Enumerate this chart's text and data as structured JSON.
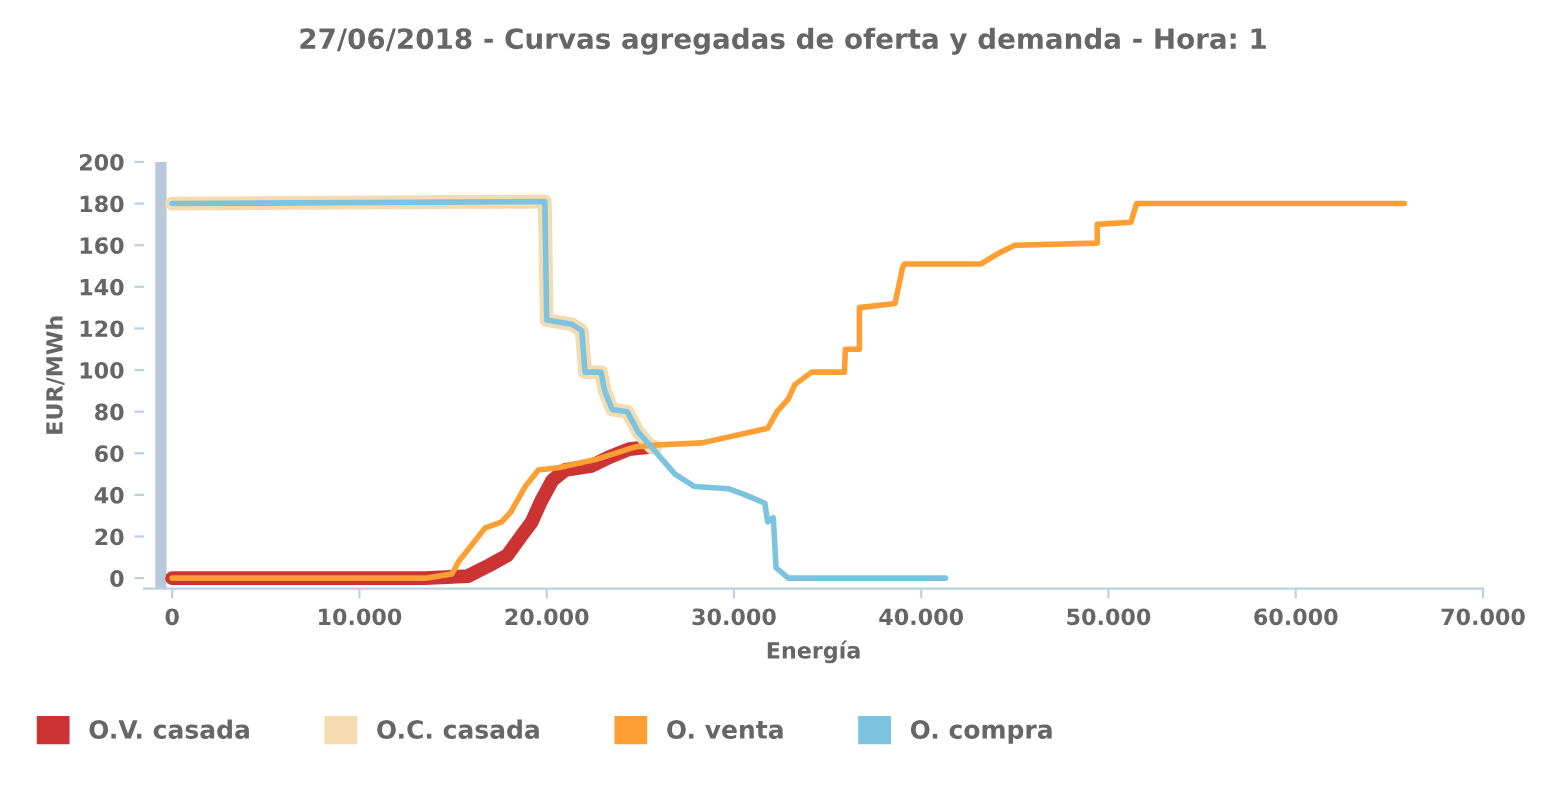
{
  "chart_data": {
    "type": "line",
    "title": "27/06/2018 - Curvas agregadas de oferta y demanda - Hora: 1",
    "xlabel": "Energía",
    "ylabel": "EUR/MWh",
    "xlim": [
      -1500,
      70000
    ],
    "ylim": [
      -5,
      200
    ],
    "xticks": [
      {
        "value": 0,
        "label": "0"
      },
      {
        "value": 10000,
        "label": "10.000"
      },
      {
        "value": 20000,
        "label": "20.000"
      },
      {
        "value": 30000,
        "label": "30.000"
      },
      {
        "value": 40000,
        "label": "40.000"
      },
      {
        "value": 50000,
        "label": "50.000"
      },
      {
        "value": 60000,
        "label": "60.000"
      },
      {
        "value": 70000,
        "label": "70.000"
      }
    ],
    "yticks": [
      0,
      20,
      40,
      60,
      80,
      100,
      120,
      140,
      160,
      180,
      200
    ],
    "grid": false,
    "legend": "bottom left",
    "marker": "none",
    "line_style": "solid",
    "bands": [
      {
        "axis": "x",
        "from": -900,
        "to": -300,
        "color": "#b8c9d9"
      }
    ],
    "series": [
      {
        "name": "O.V. casada",
        "color": "#cc3333",
        "x": [
          0,
          13500,
          15800,
          16900,
          17900,
          18700,
          19200,
          19700,
          20300,
          21000,
          22400,
          23300,
          24400,
          25400
        ],
        "values": [
          0,
          0,
          1,
          6,
          11,
          21,
          27,
          37,
          47,
          52,
          54,
          58,
          62,
          63
        ]
      },
      {
        "name": "O.C. casada",
        "color": "#f5dcb0",
        "x": [
          0,
          19900,
          20000,
          21340,
          21870,
          22050,
          22900,
          23100,
          23500,
          24300,
          24900,
          25600,
          25800
        ],
        "values": [
          180,
          181,
          124,
          122,
          119,
          99,
          99,
          90,
          81,
          80,
          70,
          63,
          63
        ]
      },
      {
        "name": "O. venta",
        "color": "#ff9f33",
        "x": [
          0,
          13500,
          14940,
          15300,
          16700,
          17600,
          18100,
          18850,
          19560,
          20600,
          22600,
          24700,
          25800,
          28300,
          31800,
          32300,
          32900,
          33250,
          34150,
          35900,
          35950,
          36700,
          36700,
          38600,
          39000,
          39100,
          43200,
          44100,
          45000,
          49400,
          49400,
          51200,
          51500,
          65800
        ],
        "values": [
          0,
          0,
          2,
          8,
          24,
          27,
          32,
          44,
          52,
          53,
          57,
          63,
          64,
          65,
          72,
          80,
          86,
          93,
          99,
          99,
          110,
          110,
          130,
          132,
          149,
          151,
          151,
          156,
          160,
          161,
          170,
          171,
          180,
          180
        ]
      },
      {
        "name": "O. compra",
        "color": "#7cc3e0",
        "x": [
          0,
          19900,
          20000,
          21340,
          21870,
          22050,
          22900,
          23100,
          23500,
          24300,
          24900,
          25600,
          26850,
          27900,
          29700,
          30600,
          31650,
          31800,
          32100,
          32250,
          32900,
          41300
        ],
        "values": [
          180,
          181,
          124,
          122,
          119,
          99,
          99,
          90,
          81,
          80,
          70,
          63,
          50,
          44,
          43,
          40,
          36,
          27,
          29,
          5,
          0,
          0
        ]
      }
    ]
  }
}
